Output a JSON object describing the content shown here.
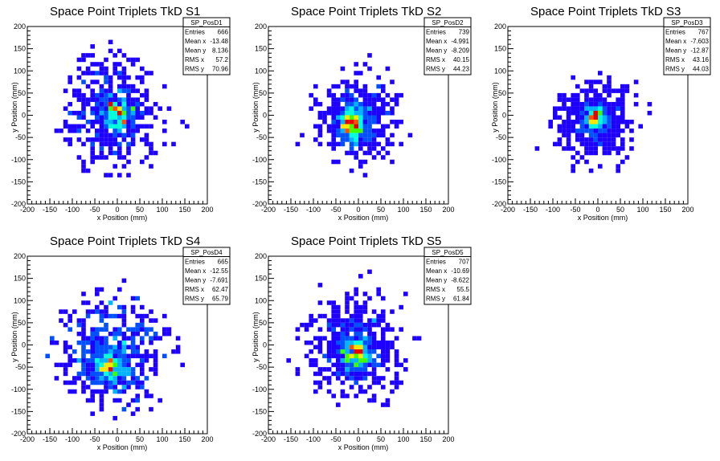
{
  "chart_data": [
    {
      "type": "heatmap",
      "title": "Space Point Triplets TkD S1",
      "xlabel": "x Position (mm)",
      "ylabel": "y Position (mm)",
      "xlim": [
        -200,
        200
      ],
      "ylim": [
        -200,
        200
      ],
      "xticks": [
        "-200",
        "-150",
        "-100",
        "-50",
        "0",
        "50",
        "100",
        "150",
        "200"
      ],
      "yticks": [
        "-200",
        "-150",
        "-100",
        "-50",
        "0",
        "50",
        "100",
        "150",
        "200"
      ],
      "stats": {
        "name": "SP_PosD1",
        "rows": [
          {
            "label": "Entries",
            "value": "666"
          },
          {
            "label": "Mean x",
            "value": "-13.48"
          },
          {
            "label": "Mean y",
            "value": "8.136"
          },
          {
            "label": "RMS x",
            "value": "57.2"
          },
          {
            "label": "RMS y",
            "value": "70.96"
          }
        ]
      },
      "bins": {
        "nx": 40,
        "ny": 40,
        "width_mm": 10
      },
      "peak": {
        "x": 0,
        "y": 0
      },
      "entries": 666,
      "mean_x": -13.48,
      "mean_y": 8.136,
      "rms_x": 57.2,
      "rms_y": 70.96
    },
    {
      "type": "heatmap",
      "title": "Space Point Triplets TkD S2",
      "xlabel": "x Position (mm)",
      "ylabel": "y Position (mm)",
      "xlim": [
        -200,
        200
      ],
      "ylim": [
        -200,
        200
      ],
      "xticks": [
        "-200",
        "-150",
        "-100",
        "-50",
        "0",
        "50",
        "100",
        "150",
        "200"
      ],
      "yticks": [
        "-200",
        "-150",
        "-100",
        "-50",
        "0",
        "50",
        "100",
        "150",
        "200"
      ],
      "stats": {
        "name": "SP_PosD2",
        "rows": [
          {
            "label": "Entries",
            "value": "739"
          },
          {
            "label": "Mean x",
            "value": "-4.991"
          },
          {
            "label": "Mean y",
            "value": "-8.209"
          },
          {
            "label": "RMS x",
            "value": "40.15"
          },
          {
            "label": "RMS y",
            "value": "44.23"
          }
        ]
      },
      "bins": {
        "nx": 40,
        "ny": 40,
        "width_mm": 10
      },
      "peak": {
        "x": -15,
        "y": -20
      },
      "entries": 739,
      "mean_x": -4.991,
      "mean_y": -8.209,
      "rms_x": 40.15,
      "rms_y": 44.23
    },
    {
      "type": "heatmap",
      "title": "Space Point Triplets TkD S3",
      "xlabel": "x Position (mm)",
      "ylabel": "y Position (mm)",
      "xlim": [
        -200,
        200
      ],
      "ylim": [
        -200,
        200
      ],
      "xticks": [
        "-200",
        "-150",
        "-100",
        "-50",
        "0",
        "50",
        "100",
        "150",
        "200"
      ],
      "yticks": [
        "-200",
        "-150",
        "-100",
        "-50",
        "0",
        "50",
        "100",
        "150",
        "200"
      ],
      "stats": {
        "name": "SP_PosD3",
        "rows": [
          {
            "label": "Entries",
            "value": "767"
          },
          {
            "label": "Mean x",
            "value": "-7.603"
          },
          {
            "label": "Mean y",
            "value": "-12.87"
          },
          {
            "label": "RMS x",
            "value": "43.16"
          },
          {
            "label": "RMS y",
            "value": "44.03"
          }
        ]
      },
      "bins": {
        "nx": 40,
        "ny": 40,
        "width_mm": 10
      },
      "peak": {
        "x": -5,
        "y": -5
      },
      "entries": 767,
      "mean_x": -7.603,
      "mean_y": -12.87,
      "rms_x": 43.16,
      "rms_y": 44.03
    },
    {
      "type": "heatmap",
      "title": "Space Point Triplets TkD S4",
      "xlabel": "x Position (mm)",
      "ylabel": "y Position (mm)",
      "xlim": [
        -200,
        200
      ],
      "ylim": [
        -200,
        200
      ],
      "xticks": [
        "-200",
        "-150",
        "-100",
        "-50",
        "0",
        "50",
        "100",
        "150",
        "200"
      ],
      "yticks": [
        "-200",
        "-150",
        "-100",
        "-50",
        "0",
        "50",
        "100",
        "150",
        "200"
      ],
      "stats": {
        "name": "SP_PosD4",
        "rows": [
          {
            "label": "Entries",
            "value": "665"
          },
          {
            "label": "Mean x",
            "value": "-12.55"
          },
          {
            "label": "Mean y",
            "value": "-7.691"
          },
          {
            "label": "RMS x",
            "value": "62.47"
          },
          {
            "label": "RMS y",
            "value": "65.79"
          }
        ]
      },
      "bins": {
        "nx": 40,
        "ny": 40,
        "width_mm": 10
      },
      "peak": {
        "x": -15,
        "y": -55
      },
      "entries": 665,
      "mean_x": -12.55,
      "mean_y": -7.691,
      "rms_x": 62.47,
      "rms_y": 65.79
    },
    {
      "type": "heatmap",
      "title": "Space Point Triplets TkD S5",
      "xlabel": "x Position (mm)",
      "ylabel": "y Position (mm)",
      "xlim": [
        -200,
        200
      ],
      "ylim": [
        -200,
        200
      ],
      "xticks": [
        "-200",
        "-150",
        "-100",
        "-50",
        "0",
        "50",
        "100",
        "150",
        "200"
      ],
      "yticks": [
        "-200",
        "-150",
        "-100",
        "-50",
        "0",
        "50",
        "100",
        "150",
        "200"
      ],
      "stats": {
        "name": "SP_PosD5",
        "rows": [
          {
            "label": "Entries",
            "value": "707"
          },
          {
            "label": "Mean x",
            "value": "-10.69"
          },
          {
            "label": "Mean y",
            "value": "-8.622"
          },
          {
            "label": "RMS x",
            "value": "55.5"
          },
          {
            "label": "RMS y",
            "value": "61.84"
          }
        ]
      },
      "bins": {
        "nx": 40,
        "ny": 40,
        "width_mm": 10
      },
      "peak": {
        "x": -5,
        "y": -20
      },
      "entries": 707,
      "mean_x": -10.69,
      "mean_y": -8.622,
      "rms_x": 55.5,
      "rms_y": 61.84
    }
  ],
  "palette": [
    "#1d00ff",
    "#0050ff",
    "#00b4ff",
    "#00ffd8",
    "#3cff00",
    "#ffe600",
    "#ff5000",
    "#e60000"
  ]
}
